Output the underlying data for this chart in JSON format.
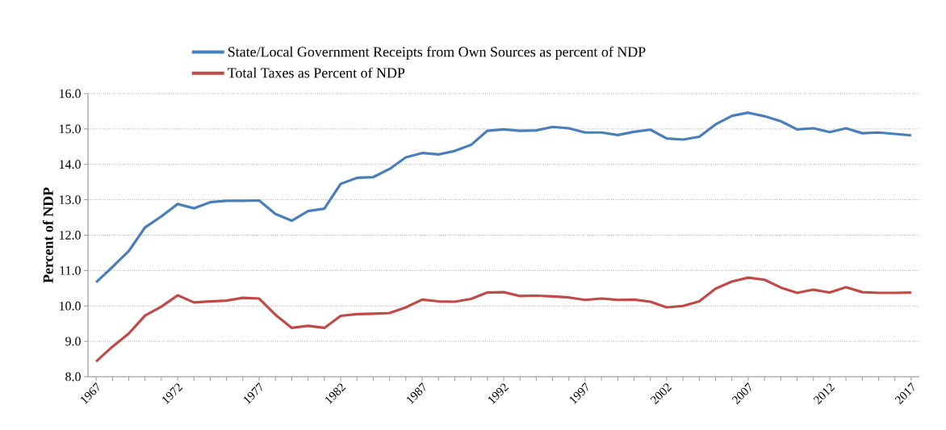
{
  "chart_data": {
    "type": "line",
    "ylabel": "Percent of NDP",
    "categories": [
      "1967",
      null,
      null,
      null,
      null,
      "1972",
      null,
      null,
      null,
      null,
      "1977",
      null,
      null,
      null,
      null,
      "1982",
      null,
      null,
      null,
      null,
      "1987",
      null,
      null,
      null,
      null,
      "1992",
      null,
      null,
      null,
      null,
      "1997",
      null,
      null,
      null,
      null,
      "2002",
      null,
      null,
      null,
      null,
      "2007",
      null,
      null,
      null,
      null,
      "2012",
      null,
      null,
      null,
      null,
      "2017"
    ],
    "series": [
      {
        "name": "State/Local Government Receipts from Own Sources as percent of NDP",
        "color": "#4a7ebb",
        "values": [
          10.67,
          11.1,
          11.55,
          12.22,
          12.53,
          12.88,
          12.76,
          12.93,
          12.97,
          12.97,
          12.98,
          12.6,
          12.41,
          12.68,
          12.75,
          13.45,
          13.62,
          13.64,
          13.87,
          14.2,
          14.32,
          14.28,
          14.38,
          14.55,
          14.95,
          14.99,
          14.95,
          14.96,
          15.06,
          15.02,
          14.9,
          14.9,
          14.83,
          14.92,
          14.98,
          14.73,
          14.7,
          14.78,
          15.13,
          15.37,
          15.46,
          15.36,
          15.22,
          14.99,
          15.02,
          14.91,
          15.02,
          14.88,
          14.9,
          14.86,
          14.82
        ]
      },
      {
        "name": "Total Taxes as Percent of NDP",
        "color": "#be4b48",
        "values": [
          8.43,
          8.85,
          9.22,
          9.73,
          9.98,
          10.3,
          10.1,
          10.13,
          10.15,
          10.23,
          10.21,
          9.75,
          9.38,
          9.44,
          9.38,
          9.72,
          9.77,
          9.78,
          9.8,
          9.96,
          10.18,
          10.13,
          10.12,
          10.2,
          10.38,
          10.39,
          10.28,
          10.29,
          10.27,
          10.24,
          10.17,
          10.21,
          10.17,
          10.18,
          10.12,
          9.96,
          10.0,
          10.13,
          10.49,
          10.69,
          10.8,
          10.74,
          10.52,
          10.37,
          10.46,
          10.38,
          10.53,
          10.39,
          10.37,
          10.37,
          10.38
        ]
      }
    ],
    "ylim": [
      8,
      16
    ],
    "yticks": [
      {
        "value": 8,
        "label": "8.0"
      },
      {
        "value": 9,
        "label": "9.0"
      },
      {
        "value": 10,
        "label": "10.0"
      },
      {
        "value": 11,
        "label": "11.0"
      },
      {
        "value": 12,
        "label": "12.0"
      },
      {
        "value": 13,
        "label": "13.0"
      },
      {
        "value": 14,
        "label": "14.0"
      },
      {
        "value": 15,
        "label": "15.0"
      },
      {
        "value": 16,
        "label": "16.0"
      }
    ],
    "grid": "y",
    "legend": "top",
    "marker": "none",
    "line_style": "solid"
  }
}
